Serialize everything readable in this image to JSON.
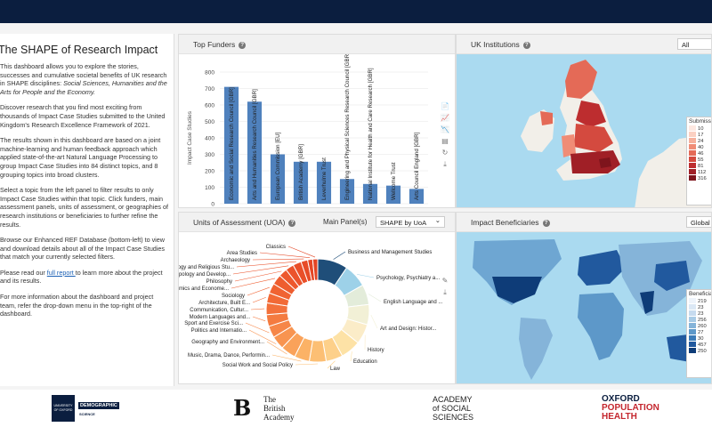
{
  "intro": {
    "title": "The SHAPE of Research Impact",
    "p1_a": "This dashboard allows you to explore the stories, successes and cumulative societal benefits of UK research in SHAPE disciplines: ",
    "p1_b": "Social Sciences, Humanities and the Arts for People and the Economy.",
    "p2": "Discover research that you find most exciting from thousands of Impact Case Studies submitted to the United Kingdom's Research Excellence Framework of 2021.",
    "p3": "The results shown in this dashboard are based on a joint machine-learning and human feedback approach which applied state-of-the-art Natural Language Processing to group Impact Case Studies into 84 distinct topics, and 8 grouping topics into broad clusters.",
    "p4": "Select a topic from the left panel to filter results to only Impact Case Studies within that topic. Click funders, main assessment panels, units of assessment, or geographies of research institutions or beneficiaries to further refine the results.",
    "p5": "Browse our Enhanced REF Database (bottom-left) to view and download details about all of the Impact Case Studies that match your currently selected filters.",
    "p6_a": "Please read our ",
    "p6_link": "full report ",
    "p6_b": "to learn more about the project and its results.",
    "p7": "For more information about the dashboard and project team, refer the drop-down menu in the top-right of the dashboard."
  },
  "funders_panel": {
    "title": "Top Funders",
    "help": "?",
    "tool_icons": [
      "📄",
      "📈",
      "📉",
      "▤",
      "↻",
      "⤓"
    ]
  },
  "uoa_panel": {
    "title": "Units of Assessment (UOA)",
    "help": "?",
    "main_panels_label": "Main Panel(s)",
    "select_value": "SHAPE by UoA",
    "select_caret": "⌄",
    "tool_icons": [
      "✎",
      "⤓"
    ]
  },
  "ukinst_panel": {
    "title": "UK Institutions",
    "help": "?",
    "select_value": "All",
    "legend_title": "Submissio",
    "legend_values": [
      "10",
      "17",
      "24",
      "40",
      "46",
      "55",
      "81",
      "112",
      "316"
    ],
    "legend_colors": [
      "#fde8e1",
      "#fbd0c2",
      "#f6b09c",
      "#f08c76",
      "#e46a57",
      "#d44a3f",
      "#bd2d2f",
      "#a01f26",
      "#7e141c"
    ]
  },
  "benef_panel": {
    "title": "Impact Beneficiaries",
    "help": "?",
    "select_value": "Global",
    "legend_title": "Beneficiar",
    "legend_values": [
      "219",
      "23",
      "23",
      "256",
      "260",
      "27",
      "30",
      "457",
      "250"
    ],
    "legend_colors": [
      "#eef4fb",
      "#dbe8f5",
      "#c6dbef",
      "#a8cbe6",
      "#85b4d9",
      "#5d98c9",
      "#3b7bb8",
      "#21599e",
      "#0e3c78"
    ]
  },
  "chart_data": {
    "type": "bar",
    "title": "Top Funders",
    "ylabel": "Impact Case Studies",
    "ylim": [
      0,
      800
    ],
    "yticks": [
      "0",
      "100",
      "200",
      "300",
      "400",
      "500",
      "600",
      "700",
      "800"
    ],
    "categories": [
      "Economic and Social Research Council [GBR]",
      "Arts and Humanities Research Council [GBR]",
      "European Commission [EU]",
      "British Academy [GBR]",
      "Leverhulme Trust",
      "Engineering and Physical Sciences Research Council [GBR]",
      "National Institute for Health and Care Research [GBR]",
      "Wellcome Trust",
      "Arts Council England [GBR]"
    ],
    "values": [
      710,
      620,
      300,
      255,
      255,
      150,
      120,
      110,
      90
    ],
    "color": "#4f81bd"
  },
  "uoa_chart": {
    "type": "pie",
    "labels": [
      "Business and Management Studies",
      "Psychology, Psychiatry a...",
      "English Language and ...",
      "Art and Design: Histor...",
      "History",
      "Education",
      "Law",
      "Social Work and Social Policy",
      "Music, Drama, Dance, Performin...",
      "Geography and Environment...",
      "Politics and Internatio...",
      "Sport and Exercise Sci...",
      "Modern Languages and...",
      "Communication, Cultur...",
      "Architecture, Built E...",
      "Sociology",
      "Economics and Econome...",
      "Philosophy",
      "Anthropology and Develop...",
      "Theology and Religious Stu...",
      "Archaeology",
      "Area Studies",
      "Classics"
    ],
    "values": [
      9,
      7,
      6,
      6,
      6,
      6,
      5,
      5,
      4.5,
      4.5,
      4,
      3.5,
      3.5,
      3.5,
      3,
      3,
      3,
      2.5,
      2.5,
      2.5,
      2,
      1.5,
      1.5
    ],
    "colors": [
      "#1f4e79",
      "#9dd1e8",
      "#e3ecda",
      "#f2f0d6",
      "#fbecc8",
      "#fde2a6",
      "#fdd08a",
      "#fcbf74",
      "#fbb266",
      "#faa25a",
      "#f89450",
      "#f68648",
      "#f47b40",
      "#f3713b",
      "#f26a36",
      "#f06332",
      "#ee5d2f",
      "#ed582d",
      "#eb532b",
      "#e94f29",
      "#e74b27",
      "#e54725",
      "#e34423"
    ]
  },
  "footer": {
    "oxford_univ": "UNIVERSITY OF OXFORD",
    "demographic": "DEMOGRAPHIC",
    "science": "SCIENCE",
    "ba_the": "The",
    "ba_british": "British",
    "ba_academy": "Academy",
    "aoss_1": "ACADEMY",
    "aoss_2": "of SOCIAL",
    "aoss_3": "SCIENCES",
    "oph_1": "OXFORD",
    "oph_2": "POPULATION",
    "oph_3": "HEALTH"
  }
}
